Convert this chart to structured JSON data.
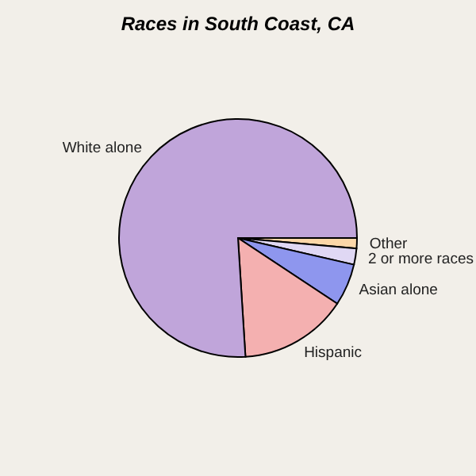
{
  "chart_data": {
    "type": "pie",
    "title": "Races in South Coast, CA",
    "categories": [
      "Other",
      "2 or more races",
      "Asian alone",
      "Hispanic",
      "White alone"
    ],
    "values": [
      1.4,
      2.2,
      5.7,
      14.7,
      76.0
    ],
    "colors": [
      "#fcd7a8",
      "#e0d8f4",
      "#8e96ee",
      "#f4b0b0",
      "#c0a5da"
    ]
  }
}
